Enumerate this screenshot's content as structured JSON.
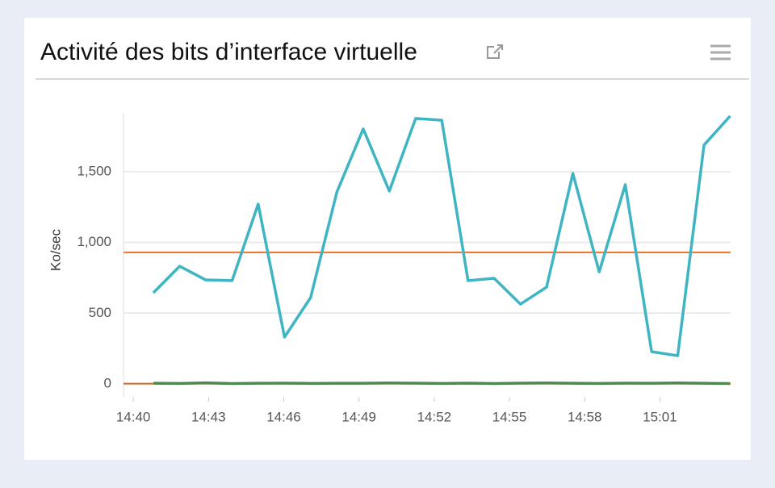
{
  "chart_data": {
    "type": "line",
    "title": "Activité des bits d’interface virtuelle",
    "y_label": "Ko/sec",
    "x": [
      880.8,
      881.85,
      882.89,
      883.94,
      884.98,
      886.03,
      887.07,
      888.12,
      889.17,
      890.21,
      891.26,
      892.3,
      893.35,
      894.39,
      895.44,
      896.48,
      897.53,
      898.58,
      899.62,
      900.67,
      901.71,
      902.76,
      903.8
    ],
    "series": [
      {
        "color": "#3fb5c4",
        "values": [
          644,
          832,
          735,
          730,
          1271,
          331,
          610,
          1357,
          1802,
          1363,
          1876,
          1864,
          730,
          747,
          564,
          684,
          1488,
          792,
          1408,
          228,
          200,
          1688,
          1893
        ]
      },
      {
        "color": "#4e8a4e",
        "values": [
          5,
          4,
          8,
          3,
          5,
          6,
          4,
          5,
          5,
          7,
          6,
          4,
          6,
          3,
          6,
          7,
          5,
          4,
          6,
          5,
          7,
          5,
          3
        ]
      }
    ],
    "reference_lines": [
      {
        "value": 930,
        "color": "#e8722a"
      },
      {
        "value": 2,
        "color": "#d9661f"
      }
    ],
    "xlim": [
      879.61,
      903.82
    ],
    "ylim": [
      -91,
      1915
    ],
    "xticks": [
      {
        "value": 880,
        "label": "14:40"
      },
      {
        "value": 883,
        "label": "14:43"
      },
      {
        "value": 886,
        "label": "14:46"
      },
      {
        "value": 889,
        "label": "14:49"
      },
      {
        "value": 892,
        "label": "14:52"
      },
      {
        "value": 895,
        "label": "14:55"
      },
      {
        "value": 898,
        "label": "14:58"
      },
      {
        "value": 901,
        "label": "15:01"
      }
    ],
    "yticks": [
      0,
      500,
      {
        "value": 1000,
        "label": "1,000"
      },
      {
        "value": 1500,
        "label": "1,500"
      }
    ],
    "grid": true
  }
}
